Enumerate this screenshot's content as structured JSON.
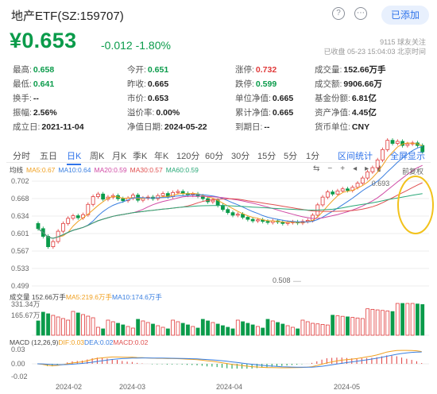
{
  "header": {
    "title": "地产ETF(SZ:159707)",
    "add_label": "已添加"
  },
  "quote": {
    "price": "¥0.653",
    "change": "-0.012",
    "change_pct": "-1.80%",
    "followers": "9115 球友关注",
    "status": "已收盘 05-23 15:04:03 北京时间"
  },
  "stats": [
    [
      {
        "label": "最高:",
        "value": "0.658",
        "color": "green"
      },
      {
        "label": "今开:",
        "value": "0.651",
        "color": "green"
      },
      {
        "label": "涨停:",
        "value": "0.732",
        "color": "red"
      },
      {
        "label": "成交量:",
        "value": "152.66万手",
        "color": "dark"
      }
    ],
    [
      {
        "label": "最低:",
        "value": "0.641",
        "color": "green"
      },
      {
        "label": "昨收:",
        "value": "0.665",
        "color": "dark"
      },
      {
        "label": "跌停:",
        "value": "0.599",
        "color": "green"
      },
      {
        "label": "成交额:",
        "value": "9906.66万",
        "color": "dark"
      }
    ],
    [
      {
        "label": "换手:",
        "value": "--",
        "color": "dark"
      },
      {
        "label": "市价:",
        "value": "0.653",
        "color": "dark"
      },
      {
        "label": "单位净值:",
        "value": "0.665",
        "color": "dark"
      },
      {
        "label": "基金份额:",
        "value": "6.81亿",
        "color": "dark"
      }
    ],
    [
      {
        "label": "振幅:",
        "value": "2.56%",
        "color": "dark"
      },
      {
        "label": "溢价率:",
        "value": "0.00%",
        "color": "dark"
      },
      {
        "label": "累计净值:",
        "value": "0.665",
        "color": "dark"
      },
      {
        "label": "资产净值:",
        "value": "4.45亿",
        "color": "dark"
      }
    ],
    [
      {
        "label": "成立日:",
        "value": "2021-11-04",
        "color": "dark"
      },
      {
        "label": "净值日期:",
        "value": "2024-05-22",
        "color": "dark"
      },
      {
        "label": "到期日:",
        "value": "--",
        "color": "dark"
      },
      {
        "label": "货币单位:",
        "value": "CNY",
        "color": "dark"
      }
    ]
  ],
  "tabs": [
    "分时",
    "五日",
    "日K",
    "周K",
    "月K",
    "季K",
    "年K",
    "120分",
    "60分",
    "30分",
    "15分",
    "5分",
    "1分"
  ],
  "active_tab": "日K",
  "tab_links": {
    "interval_stats": "区间统计",
    "fullscreen": "全屏显示"
  },
  "legends": {
    "kline_label": "均线",
    "ma": [
      {
        "text": "MA5:0.67",
        "color": "#f0a020"
      },
      {
        "text": "MA10:0.64",
        "color": "#3a7fe0"
      },
      {
        "text": "MA20:0.59",
        "color": "#d04aa5"
      },
      {
        "text": "MA30:0.57",
        "color": "#e05050"
      },
      {
        "text": "MA60:0.59",
        "color": "#2aa878"
      }
    ],
    "tools": [
      "⇆",
      "−",
      "+",
      "◂",
      "▸",
      "▮"
    ],
    "volume": [
      {
        "text": "成交量 152.66万手",
        "color": "#444"
      },
      {
        "text": "MA5:219.6万手",
        "color": "#f0a020"
      },
      {
        "text": "MA10:174.6万手",
        "color": "#3a7fe0"
      }
    ],
    "macd": [
      {
        "text": "MACD (12,26,9)",
        "color": "#444"
      },
      {
        "text": "DIF:0.03",
        "color": "#f0a020"
      },
      {
        "text": "DEA:0.02",
        "color": "#3a7fe0"
      },
      {
        "text": "MACD:0.02",
        "color": "#e05050"
      }
    ]
  },
  "chart_data": {
    "type": "candlestick",
    "price_axis": [
      "0.702",
      "0.668",
      "0.634",
      "0.601",
      "0.567",
      "0.533",
      "0.499"
    ],
    "volume_axis": [
      "331.34万",
      "165.67万"
    ],
    "macd_axis": [
      "0.03",
      "0.00",
      "-0.02"
    ],
    "dates": [
      "2024-02",
      "2024-03",
      "2024-04",
      "2024-05"
    ],
    "annotations": {
      "high": "0.693",
      "low": "0.508",
      "revert_label": "前复权"
    },
    "colors": {
      "up": "#e03a3a",
      "down": "#0a9b4a"
    }
  }
}
